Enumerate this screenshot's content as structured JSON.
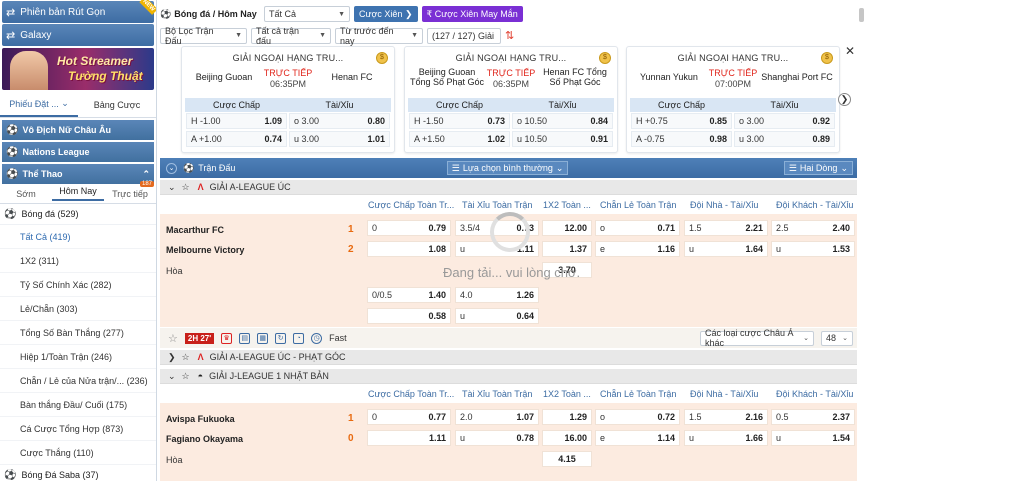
{
  "sidebar": {
    "banner1": "Phiên bản Rút Gọn",
    "banner1_badge": "NEW",
    "banner2": "Galaxy",
    "promo_line1": "Hot Streamer",
    "promo_line2": "Tường Thuật",
    "tabs": [
      "Phiếu Đặt ...",
      "Bảng Cược"
    ],
    "sections": [
      "Vô Địch Nữ Châu Âu",
      "Nations League",
      "Thể Thao"
    ],
    "subtabs": [
      "Sớm",
      "Hôm Nay",
      "Trực tiếp"
    ],
    "live_count": "187",
    "sport": "Bóng đá (529)",
    "items": [
      "Tất Cả (419)",
      "1X2 (311)",
      "Tỷ Số Chính Xác (282)",
      "Lẻ/Chẵn (303)",
      "Tổng Số Bàn Thắng (277)",
      "Hiệp 1/Toàn Trận (246)",
      "Chẵn / Lẻ của Nửa trận/... (236)",
      "Bàn thắng Đầu/ Cuối (175)",
      "Cá Cược Tổng Hợp (873)",
      "Cược Thắng (110)"
    ],
    "sport2": "Bóng Đá Saba (37)"
  },
  "topbar": {
    "title": "Bóng đá / Hôm Nay",
    "filter_all": "Tất Cả",
    "parlay": "Cược Xiên",
    "lucky_parlay": "Cược Xiên May Mắn",
    "match_filter": "Bộ Lọc Trận Đấu",
    "all_matches": "Tất cả trận đấu",
    "sort": "Từ trước đến nay",
    "league_count": "(127 / 127) Giải"
  },
  "cards": [
    {
      "league": "GIẢI NGOẠI HẠNG TRU...",
      "home": "Beijing Guoan",
      "away": "Henan FC",
      "status": "TRỰC TIẾP",
      "time": "06:35PM",
      "h1": "Cược Chấp",
      "h2": "Tài/Xỉu",
      "rows": [
        [
          "H -1.00",
          "1.09",
          "o 3.00",
          "0.80"
        ],
        [
          "A +1.00",
          "0.74",
          "u 3.00",
          "1.01"
        ]
      ]
    },
    {
      "league": "GIẢI NGOẠI HẠNG TRU...",
      "home": "Beijing Guoan Tổng Số Phạt Góc",
      "away": "Henan FC Tổng Số Phạt Góc",
      "status": "TRỰC TIẾP",
      "time": "06:35PM",
      "h1": "Cược Chấp",
      "h2": "Tài/Xỉu",
      "rows": [
        [
          "H -1.50",
          "0.73",
          "o 10.50",
          "0.84"
        ],
        [
          "A +1.50",
          "1.02",
          "u 10.50",
          "0.91"
        ]
      ]
    },
    {
      "league": "GIẢI NGOẠI HẠNG TRU...",
      "home": "Yunnan Yukun",
      "away": "Shanghai Port FC",
      "status": "TRỰC TIẾP",
      "time": "07:00PM",
      "h1": "Cược Chấp",
      "h2": "Tài/Xỉu",
      "rows": [
        [
          "H +0.75",
          "0.85",
          "o 3.00",
          "0.92"
        ],
        [
          "A -0.75",
          "0.98",
          "u 3.00",
          "0.89"
        ]
      ]
    }
  ],
  "matches_header": {
    "title": "Trận Đấu",
    "view": "Lựa chọn bình thường",
    "rows": "Hai Dòng"
  },
  "columns": [
    "Cược Chấp Toàn Tr...",
    "Tài Xỉu Toàn Trận",
    "1X2 Toàn ...",
    "Chẵn Lẻ Toàn Trận",
    "Đội Nhà - Tài/Xỉu",
    "Đội Khách - Tài/Xỉu"
  ],
  "league1": "GIẢI A-LEAGUE ÚC",
  "match1": {
    "home": "Macarthur FC",
    "away": "Melbourne Victory",
    "home_score": "1",
    "away_score": "2",
    "draw": "Hòa",
    "r1": [
      [
        "0",
        "0.79"
      ],
      [
        "3.5/4",
        "0.73"
      ],
      [
        "",
        "12.00"
      ],
      [
        "o",
        "0.71"
      ],
      [
        "1.5",
        "2.21"
      ],
      [
        "2.5",
        "2.40"
      ]
    ],
    "r2": [
      [
        "",
        "1.08"
      ],
      [
        "u",
        "1.11"
      ],
      [
        "",
        "1.37"
      ],
      [
        "e",
        "1.16"
      ],
      [
        "u",
        "1.64"
      ],
      [
        "u",
        "1.53"
      ]
    ],
    "draw_odds": "3.70",
    "r4": [
      [
        "0/0.5",
        "1.40"
      ],
      [
        "4.0",
        "1.26"
      ]
    ],
    "r5": [
      [
        "",
        "0.58"
      ],
      [
        "u",
        "0.64"
      ]
    ]
  },
  "loading": "Đang tải... vui lòng chờ.",
  "actions": {
    "live": "2H 27'",
    "fast": "Fast",
    "market": "Các loại cược Châu Á khác",
    "count": "48"
  },
  "league2": "GIẢI A-LEAGUE ÚC - PHẠT GÓC",
  "league3": "GIẢI J-LEAGUE 1 NHẬT BẢN",
  "match2": {
    "home": "Avispa Fukuoka",
    "away": "Fagiano Okayama",
    "home_score": "1",
    "away_score": "0",
    "draw": "Hòa",
    "r1": [
      [
        "0",
        "0.77"
      ],
      [
        "2.0",
        "1.07"
      ],
      [
        "",
        "1.29"
      ],
      [
        "o",
        "0.72"
      ],
      [
        "1.5",
        "2.16"
      ],
      [
        "0.5",
        "2.37"
      ]
    ],
    "r2": [
      [
        "",
        "1.11"
      ],
      [
        "u",
        "0.78"
      ],
      [
        "",
        "16.00"
      ],
      [
        "e",
        "1.14"
      ],
      [
        "u",
        "1.66"
      ],
      [
        "u",
        "1.54"
      ]
    ],
    "draw_odds": "4.15"
  }
}
